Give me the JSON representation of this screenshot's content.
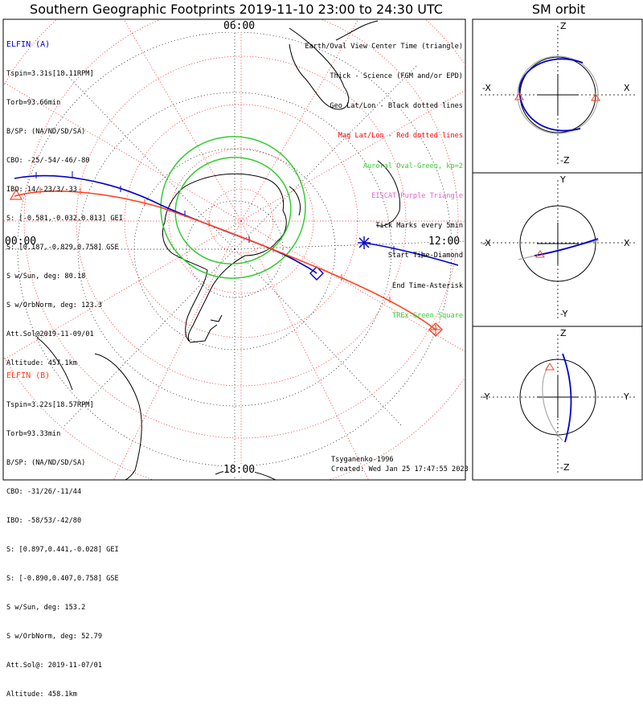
{
  "title": "Southern Geographic Footprints 2019-11-10 23:00 to 24:30 UTC",
  "sm_title": "SM orbit",
  "time_labels": {
    "top": "06:00",
    "left": "00:00",
    "right": "12:00",
    "bottom": "18:00"
  },
  "elfin_a": {
    "name": "ELFIN (A)",
    "lines": [
      "Tspin=3.31s[18.11RPM]",
      "Torb=93.66min",
      "B/SP: (NA/ND/SD/SA)",
      "CBO: -25/-54/-46/-80",
      "IBO: 14/-23/3/-33",
      "S: [-0.581,-0.032,0.813] GEI",
      "S: [0.187,-0.829,0.758] GSE",
      "S w/Sun, deg: 80.18",
      "S w/OrbNorm, deg: 123.3",
      "Att.Sol@2019-11-09/01",
      "Altitude: 457.1km"
    ]
  },
  "elfin_b": {
    "name": "ELFIN (B)",
    "lines": [
      "Tspin=3.22s[18.57RPM]",
      "Torb=93.33min",
      "B/SP: (NA/ND/SD/SA)",
      "CBO: -31/26/-11/44",
      "IBO: -58/53/-42/80",
      "S: [0.897,0.441,-0.028] GEI",
      "S: [-0.890,0.407,0.758] GSE",
      "S w/Sun, deg: 153.2",
      "S w/OrbNorm, deg: 52.79",
      "Att.Sol@: 2019-11-07/01",
      "Altitude: 458.1km"
    ]
  },
  "legend": [
    {
      "text": "Earth/Oval View Center Time (triangle)",
      "color": "#000000"
    },
    {
      "text": "Thick - Science (FGM and/or EPD)",
      "color": "#000000"
    },
    {
      "text": "Geo Lat/Lon - Black dotted lines",
      "color": "#000000"
    },
    {
      "text": "Mag Lat/Lon - Red dotted lines",
      "color": "#ff0000"
    },
    {
      "text": "Auroral Oval-Green, kp=2",
      "color": "#33cc33"
    },
    {
      "text": "EISCAT-Purple Triangle",
      "color": "#e060d0"
    },
    {
      "text": "Tick Marks every 5min",
      "color": "#000000"
    },
    {
      "text": "Start Time-Diamond",
      "color": "#000000"
    },
    {
      "text": "End Time-Asterisk",
      "color": "#000000"
    },
    {
      "text": "TREx-Green Square",
      "color": "#33cc33"
    }
  ],
  "footer": {
    "credit": "Tsyganenko-1996",
    "created": "Created: Wed Jan 25 17:47:55 2023"
  },
  "sm_panels": [
    {
      "top": "Z",
      "bottom": "-Z",
      "left": "-X",
      "right": "X"
    },
    {
      "top": "Y",
      "bottom": "-Y",
      "left": "-X",
      "right": "X"
    },
    {
      "top": "Z",
      "bottom": "-Z",
      "left": "-Y",
      "right": "Y"
    }
  ],
  "colors": {
    "elfin_a": "#0000cc",
    "elfin_b": "#ff4422",
    "oval": "#33cc33",
    "mag_grid": "#ff0000"
  }
}
